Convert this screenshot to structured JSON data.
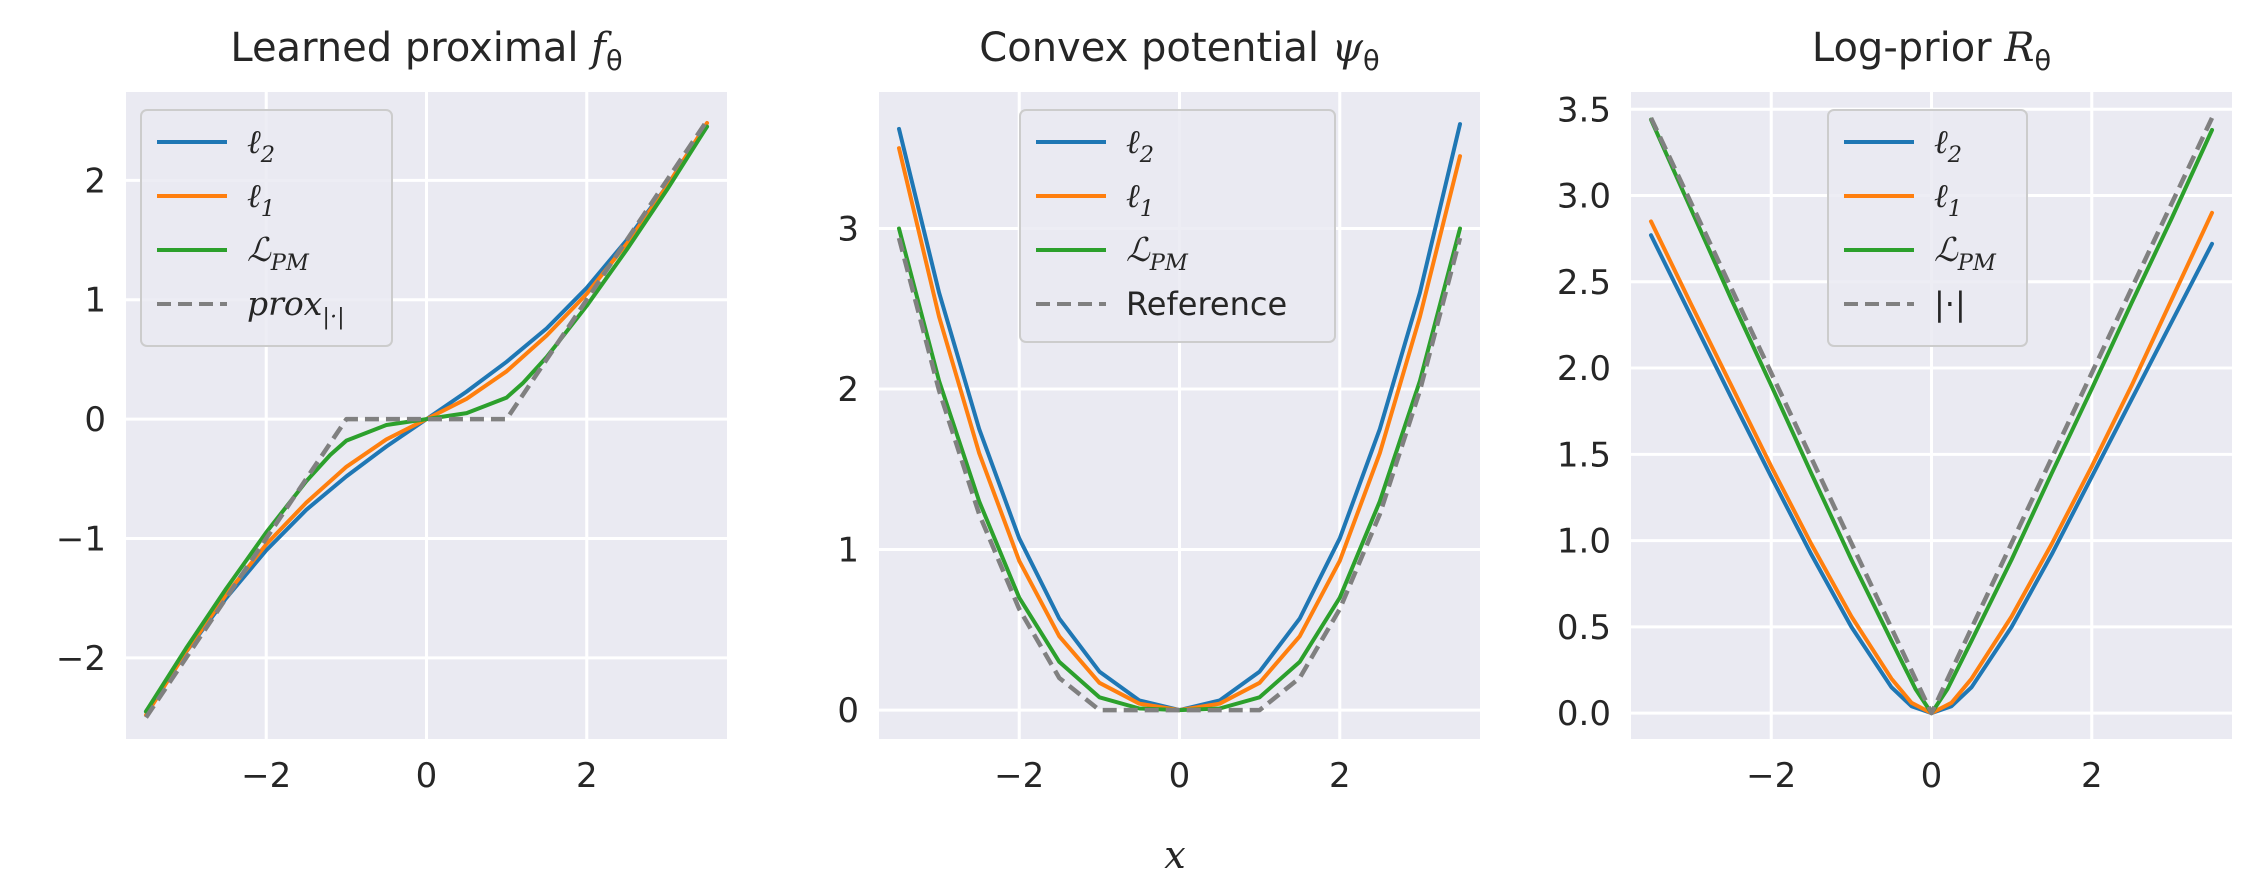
{
  "figure": {
    "xlabel": "x"
  },
  "colors": {
    "l2": "#1f77b4",
    "l1": "#ff7f0e",
    "lpm": "#2ca02c",
    "reference": "#808080",
    "background": "#eaeaf2",
    "grid": "#ffffff"
  },
  "chart_data": [
    {
      "type": "line",
      "title": "Learned proximal fθ",
      "xlim": [
        -3.75,
        3.75
      ],
      "ylim": [
        -2.68,
        2.74
      ],
      "xticks": [
        -2,
        0,
        2
      ],
      "xtick_labels": [
        "−2",
        "0",
        "2"
      ],
      "yticks": [
        -2,
        -1,
        0,
        1,
        2
      ],
      "ytick_labels": [
        "−2",
        "−1",
        "0",
        "1",
        "2"
      ],
      "legend": {
        "position": "upper-left"
      },
      "series": [
        {
          "name": "ℓ2",
          "style": "solid",
          "color": "#1f77b4",
          "x": [
            -3.5,
            -3.0,
            -2.5,
            -2.0,
            -1.5,
            -1.0,
            -0.5,
            0.0,
            0.5,
            1.0,
            1.5,
            2.0,
            2.5,
            3.0,
            3.5
          ],
          "y": [
            -2.45,
            -1.95,
            -1.5,
            -1.1,
            -0.76,
            -0.48,
            -0.23,
            0.0,
            0.23,
            0.48,
            0.76,
            1.1,
            1.5,
            1.95,
            2.45
          ]
        },
        {
          "name": "ℓ1",
          "style": "solid",
          "color": "#ff7f0e",
          "x": [
            -3.5,
            -3.0,
            -2.5,
            -2.0,
            -1.5,
            -1.0,
            -0.5,
            0.0,
            0.5,
            1.0,
            1.5,
            2.0,
            2.5,
            3.0,
            3.5
          ],
          "y": [
            -2.48,
            -1.95,
            -1.47,
            -1.05,
            -0.7,
            -0.4,
            -0.17,
            0.0,
            0.17,
            0.4,
            0.7,
            1.05,
            1.47,
            1.95,
            2.48
          ]
        },
        {
          "name": "ℒPM",
          "style": "solid",
          "color": "#2ca02c",
          "x": [
            -3.5,
            -3.0,
            -2.5,
            -2.0,
            -1.5,
            -1.2,
            -1.0,
            -0.5,
            0.0,
            0.5,
            1.0,
            1.2,
            1.5,
            2.0,
            2.5,
            3.0,
            3.5
          ],
          "y": [
            -2.45,
            -1.92,
            -1.42,
            -0.95,
            -0.52,
            -0.3,
            -0.18,
            -0.05,
            0.0,
            0.05,
            0.18,
            0.3,
            0.52,
            0.95,
            1.42,
            1.92,
            2.45
          ]
        },
        {
          "name": "prox|·|",
          "style": "dashed",
          "color": "#808080",
          "x": [
            -3.5,
            -1.0,
            1.0,
            3.5
          ],
          "y": [
            -2.5,
            0.0,
            0.0,
            2.5
          ]
        }
      ]
    },
    {
      "type": "line",
      "title": "Convex potential ψθ",
      "xlim": [
        -3.75,
        3.75
      ],
      "ylim": [
        -0.18,
        3.85
      ],
      "xticks": [
        -2,
        0,
        2
      ],
      "xtick_labels": [
        "−2",
        "0",
        "2"
      ],
      "yticks": [
        0,
        1,
        2,
        3
      ],
      "ytick_labels": [
        "0",
        "1",
        "2",
        "3"
      ],
      "legend": {
        "position": "upper-center"
      },
      "series": [
        {
          "name": "ℓ2",
          "style": "solid",
          "color": "#1f77b4",
          "x": [
            -3.5,
            -3.0,
            -2.5,
            -2.0,
            -1.5,
            -1.0,
            -0.5,
            0.0,
            0.5,
            1.0,
            1.5,
            2.0,
            2.5,
            3.0,
            3.5
          ],
          "y": [
            3.62,
            2.6,
            1.75,
            1.07,
            0.57,
            0.24,
            0.06,
            0.0,
            0.06,
            0.24,
            0.57,
            1.07,
            1.75,
            2.6,
            3.65
          ]
        },
        {
          "name": "ℓ1",
          "style": "solid",
          "color": "#ff7f0e",
          "x": [
            -3.5,
            -3.0,
            -2.5,
            -2.0,
            -1.5,
            -1.0,
            -0.5,
            0.0,
            0.5,
            1.0,
            1.5,
            2.0,
            2.5,
            3.0,
            3.5
          ],
          "y": [
            3.5,
            2.45,
            1.6,
            0.93,
            0.46,
            0.17,
            0.04,
            0.0,
            0.04,
            0.17,
            0.46,
            0.93,
            1.6,
            2.45,
            3.45
          ]
        },
        {
          "name": "ℒPM",
          "style": "solid",
          "color": "#2ca02c",
          "x": [
            -3.5,
            -3.0,
            -2.5,
            -2.0,
            -1.5,
            -1.0,
            -0.5,
            0.0,
            0.5,
            1.0,
            1.5,
            2.0,
            2.5,
            3.0,
            3.5
          ],
          "y": [
            3.0,
            2.05,
            1.3,
            0.7,
            0.3,
            0.08,
            0.01,
            0.0,
            0.01,
            0.08,
            0.3,
            0.7,
            1.3,
            2.05,
            3.0
          ]
        },
        {
          "name": "Reference",
          "style": "dashed",
          "color": "#808080",
          "x": [
            -3.5,
            -3.0,
            -2.5,
            -2.0,
            -1.5,
            -1.0,
            -0.5,
            0.0,
            0.5,
            1.0,
            1.5,
            2.0,
            2.5,
            3.0,
            3.5
          ],
          "y": [
            2.94,
            1.99,
            1.22,
            0.63,
            0.2,
            0.0,
            0.0,
            0.0,
            0.0,
            0.0,
            0.2,
            0.63,
            1.22,
            1.99,
            2.94
          ]
        }
      ]
    },
    {
      "type": "line",
      "title": "Log-prior Rθ",
      "xlim": [
        -3.75,
        3.75
      ],
      "ylim": [
        -0.15,
        3.6
      ],
      "xticks": [
        -2,
        0,
        2
      ],
      "xtick_labels": [
        "−2",
        "0",
        "2"
      ],
      "yticks": [
        0.0,
        0.5,
        1.0,
        1.5,
        2.0,
        2.5,
        3.0,
        3.5
      ],
      "ytick_labels": [
        "0.0",
        "0.5",
        "1.0",
        "1.5",
        "2.0",
        "2.5",
        "3.0",
        "3.5"
      ],
      "legend": {
        "position": "upper-center"
      },
      "series": [
        {
          "name": "ℓ2",
          "style": "solid",
          "color": "#1f77b4",
          "x": [
            -3.5,
            -3.0,
            -2.5,
            -2.0,
            -1.5,
            -1.0,
            -0.5,
            -0.25,
            0.0,
            0.25,
            0.5,
            1.0,
            1.5,
            2.0,
            2.5,
            3.0,
            3.5
          ],
          "y": [
            2.77,
            2.3,
            1.83,
            1.37,
            0.92,
            0.5,
            0.15,
            0.04,
            0.0,
            0.04,
            0.15,
            0.5,
            0.92,
            1.37,
            1.82,
            2.27,
            2.72
          ]
        },
        {
          "name": "ℓ1",
          "style": "solid",
          "color": "#ff7f0e",
          "x": [
            -3.5,
            -3.0,
            -2.5,
            -2.0,
            -1.5,
            -1.0,
            -0.5,
            -0.25,
            0.0,
            0.25,
            0.5,
            1.0,
            1.5,
            2.0,
            2.5,
            3.0,
            3.5
          ],
          "y": [
            2.85,
            2.37,
            1.9,
            1.43,
            0.98,
            0.56,
            0.2,
            0.06,
            0.0,
            0.06,
            0.2,
            0.56,
            0.98,
            1.43,
            1.9,
            2.4,
            2.9
          ]
        },
        {
          "name": "ℒPM",
          "style": "solid",
          "color": "#2ca02c",
          "x": [
            -3.5,
            -3.0,
            -2.5,
            -2.0,
            -1.5,
            -1.0,
            -0.5,
            -0.2,
            0.0,
            0.2,
            0.5,
            1.0,
            1.5,
            2.0,
            2.5,
            3.0,
            3.5
          ],
          "y": [
            3.44,
            2.92,
            2.4,
            1.9,
            1.39,
            0.89,
            0.42,
            0.14,
            0.0,
            0.14,
            0.42,
            0.89,
            1.39,
            1.88,
            2.38,
            2.87,
            3.38
          ]
        },
        {
          "name": "|·|",
          "style": "dashed",
          "color": "#808080",
          "x": [
            -3.5,
            0.0,
            3.5
          ],
          "y": [
            3.45,
            0.0,
            3.45
          ]
        }
      ]
    }
  ]
}
